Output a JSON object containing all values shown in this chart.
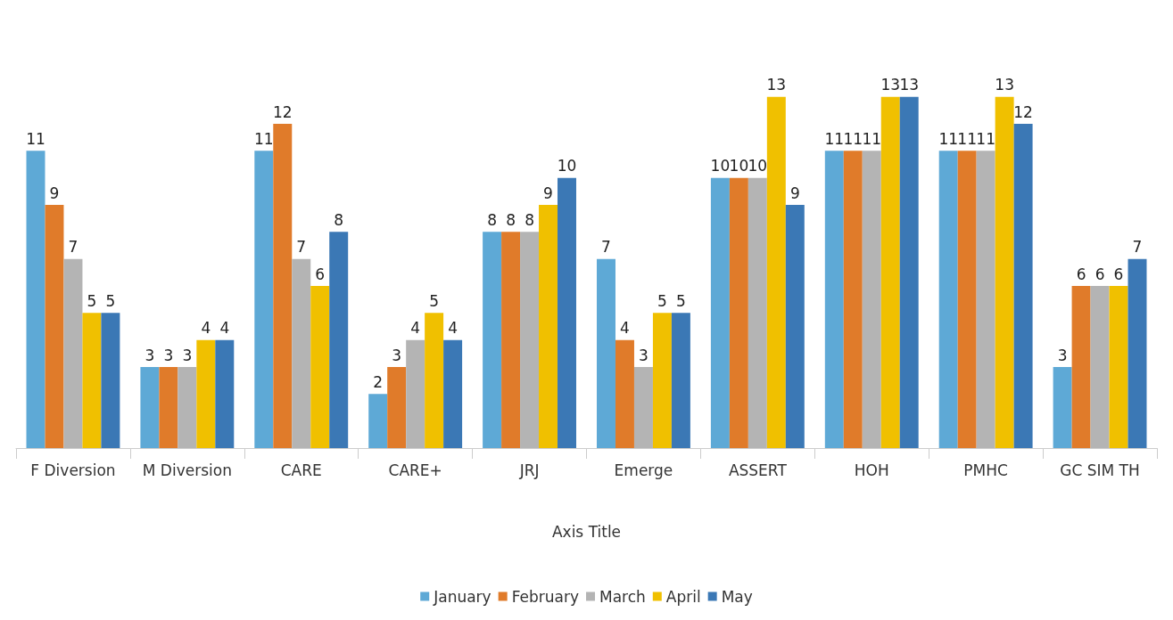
{
  "chart_data": {
    "type": "bar",
    "xlabel": "Axis Title",
    "categories": [
      "F Diversion",
      "M Diversion",
      "CARE",
      "CARE+",
      "JRJ",
      "Emerge",
      "ASSERT",
      "HOH",
      "PMHC",
      "GC SIM TH"
    ],
    "series": [
      {
        "name": "January",
        "color": "#5ea9d6",
        "values": [
          11,
          3,
          11,
          2,
          8,
          7,
          10,
          11,
          11,
          3
        ]
      },
      {
        "name": "February",
        "color": "#e07b2a",
        "values": [
          9,
          3,
          12,
          3,
          8,
          4,
          10,
          11,
          11,
          6
        ]
      },
      {
        "name": "March",
        "color": "#b4b4b4",
        "values": [
          7,
          3,
          7,
          4,
          8,
          3,
          10,
          11,
          11,
          6
        ]
      },
      {
        "name": "April",
        "color": "#f0c000",
        "values": [
          5,
          4,
          6,
          5,
          9,
          5,
          13,
          13,
          13,
          6
        ]
      },
      {
        "name": "May",
        "color": "#3b78b5",
        "values": [
          5,
          4,
          8,
          4,
          10,
          5,
          9,
          13,
          12,
          7
        ]
      }
    ],
    "data_labels": true,
    "legend": "bottom",
    "grid": false
  }
}
